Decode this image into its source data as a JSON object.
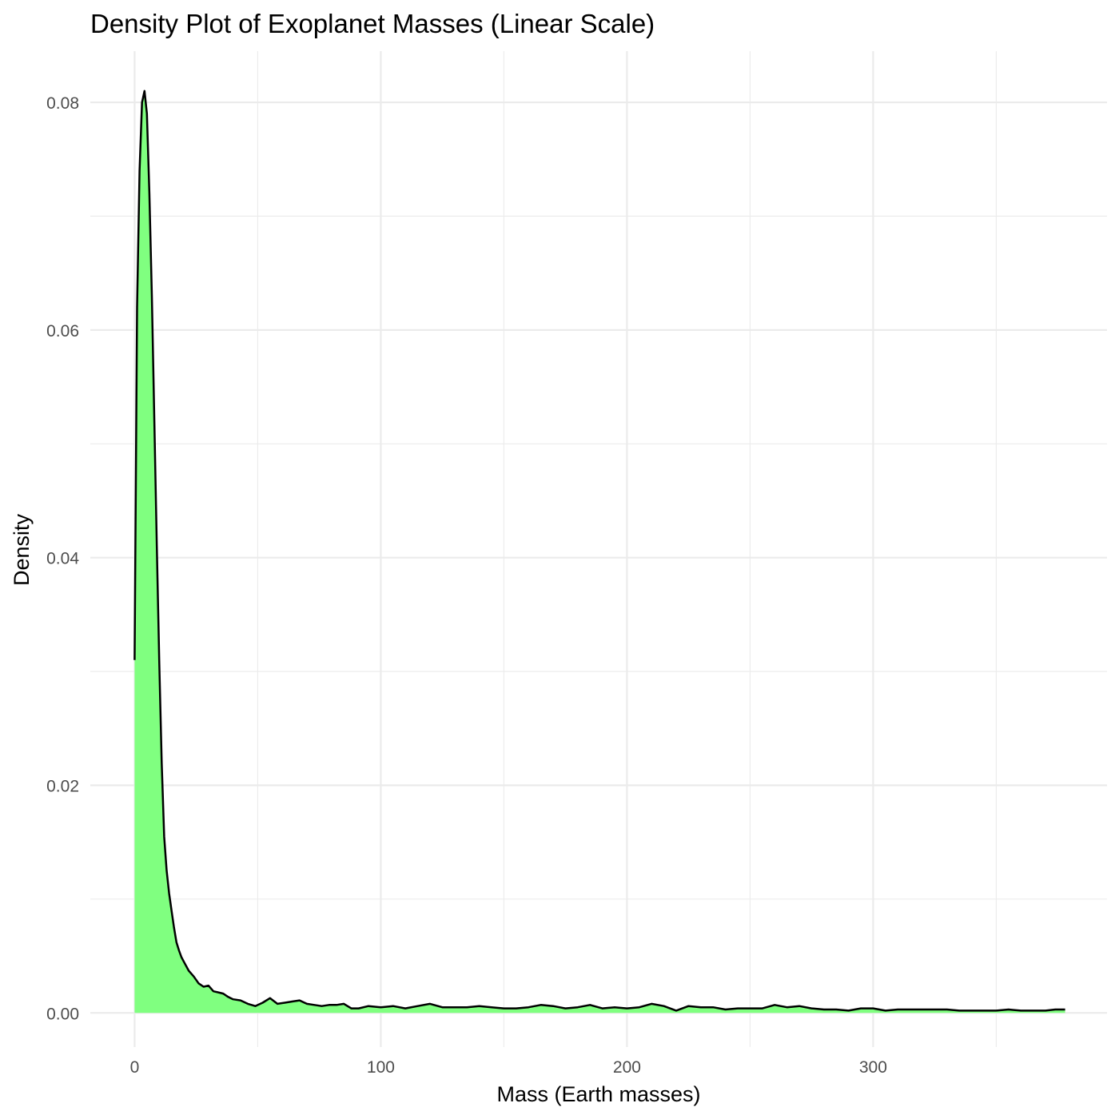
{
  "chart_data": {
    "type": "area",
    "title": "Density Plot of Exoplanet Masses (Linear Scale)",
    "xlabel": "Mass (Earth masses)",
    "ylabel": "Density",
    "xlim": [
      -18,
      395
    ],
    "ylim": [
      -0.003,
      0.0845
    ],
    "x_ticks": [
      0,
      100,
      200,
      300
    ],
    "x_tick_labels": [
      "0",
      "100",
      "200",
      "300"
    ],
    "y_ticks": [
      0,
      0.02,
      0.04,
      0.06,
      0.08
    ],
    "y_tick_labels": [
      "0.00",
      "0.02",
      "0.04",
      "0.06",
      "0.08"
    ],
    "grid": true,
    "legend": "none",
    "fill_color": "#80ff80",
    "line_color": "#000000",
    "series": [
      {
        "x": [
          0,
          1,
          2,
          3,
          4,
          5,
          6,
          7,
          8,
          9,
          10,
          11,
          12,
          13,
          14,
          15,
          16,
          17,
          18,
          19,
          20,
          22,
          24,
          26,
          28,
          30,
          32,
          34,
          36,
          38,
          40,
          43,
          46,
          49,
          52,
          55,
          58,
          61,
          64,
          67,
          70,
          73,
          76,
          79,
          82,
          85,
          88,
          91,
          95,
          100,
          105,
          110,
          115,
          120,
          125,
          130,
          135,
          140,
          145,
          150,
          155,
          160,
          165,
          170,
          175,
          180,
          185,
          190,
          195,
          200,
          205,
          210,
          215,
          220,
          225,
          230,
          235,
          240,
          245,
          250,
          255,
          260,
          265,
          270,
          275,
          280,
          285,
          290,
          295,
          300,
          305,
          310,
          315,
          320,
          325,
          330,
          335,
          340,
          345,
          350,
          355,
          360,
          365,
          370,
          374,
          378
        ],
        "y": [
          0.031,
          0.062,
          0.074,
          0.08,
          0.081,
          0.079,
          0.072,
          0.063,
          0.052,
          0.041,
          0.031,
          0.022,
          0.0155,
          0.0125,
          0.0105,
          0.009,
          0.0075,
          0.0062,
          0.0055,
          0.0049,
          0.0045,
          0.0037,
          0.0032,
          0.0026,
          0.0023,
          0.0024,
          0.0019,
          0.0018,
          0.0017,
          0.0014,
          0.0012,
          0.0011,
          0.0008,
          0.0006,
          0.0009,
          0.0013,
          0.0008,
          0.0009,
          0.001,
          0.0011,
          0.0008,
          0.0007,
          0.0006,
          0.0007,
          0.0007,
          0.0008,
          0.0004,
          0.0004,
          0.0006,
          0.0005,
          0.0006,
          0.0004,
          0.0006,
          0.0008,
          0.0005,
          0.0005,
          0.0005,
          0.0006,
          0.0005,
          0.0004,
          0.0004,
          0.0005,
          0.0007,
          0.0006,
          0.0004,
          0.0005,
          0.0007,
          0.0004,
          0.0005,
          0.0004,
          0.0005,
          0.0008,
          0.0006,
          0.0002,
          0.0006,
          0.0005,
          0.0005,
          0.0003,
          0.0004,
          0.0004,
          0.0004,
          0.0007,
          0.0005,
          0.0006,
          0.0004,
          0.0003,
          0.0003,
          0.0002,
          0.0004,
          0.0004,
          0.0002,
          0.0003,
          0.0003,
          0.0003,
          0.0003,
          0.0003,
          0.0002,
          0.0002,
          0.0002,
          0.0002,
          0.0003,
          0.0002,
          0.0002,
          0.0002,
          0.0003,
          0.0003
        ]
      }
    ]
  }
}
